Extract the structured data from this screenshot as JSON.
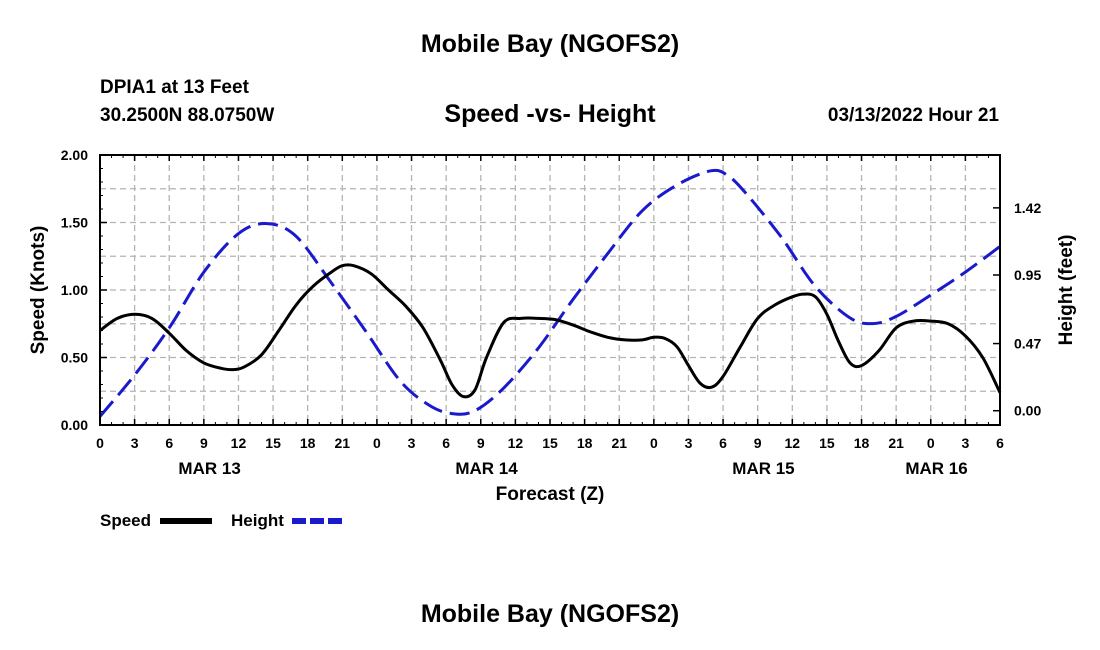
{
  "header": {
    "title": "Mobile Bay (NGOFS2)",
    "station": "DPIA1 at 13 Feet",
    "coords": "30.2500N  88.0750W",
    "subtitle": "Speed -vs- Height",
    "datetime": "03/13/2022 Hour 21",
    "title_repeat": "Mobile Bay (NGOFS2)"
  },
  "chart_data": {
    "type": "line",
    "title": "Speed -vs- Height",
    "xlabel": "Forecast (Z)",
    "ylabel": "Speed (Knots)",
    "y2label": "Height (feet)",
    "x_range_hours": [
      0,
      78
    ],
    "x_ticks": [
      {
        "h": 0,
        "label": "0"
      },
      {
        "h": 3,
        "label": "3"
      },
      {
        "h": 6,
        "label": "6"
      },
      {
        "h": 9,
        "label": "9"
      },
      {
        "h": 12,
        "label": "12"
      },
      {
        "h": 15,
        "label": "15"
      },
      {
        "h": 18,
        "label": "18"
      },
      {
        "h": 21,
        "label": "21"
      },
      {
        "h": 24,
        "label": "0"
      },
      {
        "h": 27,
        "label": "3"
      },
      {
        "h": 30,
        "label": "6"
      },
      {
        "h": 33,
        "label": "9"
      },
      {
        "h": 36,
        "label": "12"
      },
      {
        "h": 39,
        "label": "15"
      },
      {
        "h": 42,
        "label": "18"
      },
      {
        "h": 45,
        "label": "21"
      },
      {
        "h": 48,
        "label": "0"
      },
      {
        "h": 51,
        "label": "3"
      },
      {
        "h": 54,
        "label": "6"
      },
      {
        "h": 57,
        "label": "9"
      },
      {
        "h": 60,
        "label": "12"
      },
      {
        "h": 63,
        "label": "15"
      },
      {
        "h": 66,
        "label": "18"
      },
      {
        "h": 69,
        "label": "21"
      },
      {
        "h": 72,
        "label": "0"
      },
      {
        "h": 75,
        "label": "3"
      },
      {
        "h": 78,
        "label": "6"
      }
    ],
    "date_labels": [
      {
        "h": 9.5,
        "label": "MAR 13"
      },
      {
        "h": 33.5,
        "label": "MAR 14"
      },
      {
        "h": 57.5,
        "label": "MAR 15"
      },
      {
        "h": 72.5,
        "label": "MAR 16"
      }
    ],
    "ylim": [
      0,
      2.0
    ],
    "y_ticks": [
      {
        "v": 0.0,
        "label": "0.00"
      },
      {
        "v": 0.5,
        "label": "0.50"
      },
      {
        "v": 1.0,
        "label": "1.00"
      },
      {
        "v": 1.5,
        "label": "1.50"
      },
      {
        "v": 2.0,
        "label": "2.00"
      }
    ],
    "y2lim": [
      -0.1,
      1.79
    ],
    "y2_ticks": [
      {
        "v": 0.0,
        "label": "0.00"
      },
      {
        "v": 0.47,
        "label": "0.47"
      },
      {
        "v": 0.95,
        "label": "0.95"
      },
      {
        "v": 1.42,
        "label": "1.42"
      }
    ],
    "grid": true,
    "legend_position": "bottom-left",
    "series": [
      {
        "name": "Speed",
        "axis": "left",
        "color": "#000000",
        "dash": "solid",
        "x": [
          0,
          1.5,
          3,
          4.5,
          6,
          7.5,
          9,
          10.5,
          11.5,
          12.5,
          14,
          15.5,
          17,
          18.5,
          20,
          21,
          22,
          23.5,
          25,
          26.5,
          28,
          29.5,
          30.5,
          31.5,
          32.5,
          33.5,
          35,
          36.5,
          38,
          39.5,
          41,
          42.5,
          44,
          45.5,
          47,
          48,
          49,
          50,
          51,
          52,
          53,
          54,
          55.5,
          57,
          58.5,
          60,
          61,
          62,
          63,
          64,
          65,
          66,
          67.5,
          69,
          70.5,
          72,
          73.5,
          75,
          76.5,
          78
        ],
        "values": [
          0.7,
          0.79,
          0.82,
          0.79,
          0.68,
          0.55,
          0.46,
          0.42,
          0.41,
          0.43,
          0.52,
          0.7,
          0.89,
          1.03,
          1.13,
          1.18,
          1.18,
          1.12,
          1.0,
          0.88,
          0.72,
          0.48,
          0.3,
          0.21,
          0.26,
          0.5,
          0.76,
          0.79,
          0.79,
          0.78,
          0.74,
          0.69,
          0.65,
          0.63,
          0.63,
          0.65,
          0.64,
          0.58,
          0.44,
          0.31,
          0.28,
          0.36,
          0.58,
          0.79,
          0.89,
          0.95,
          0.97,
          0.95,
          0.82,
          0.62,
          0.46,
          0.44,
          0.55,
          0.72,
          0.77,
          0.77,
          0.75,
          0.66,
          0.5,
          0.24
        ]
      },
      {
        "name": "Height",
        "axis": "right",
        "color": "#1a1acd",
        "dash": "dashed",
        "x": [
          0,
          3,
          6,
          9,
          12,
          14.5,
          17,
          20,
          23,
          26,
          28.5,
          30.5,
          32.5,
          35,
          38,
          41,
          44,
          47,
          50,
          53,
          54.5,
          56,
          59,
          62,
          65,
          67,
          69,
          72,
          75,
          78
        ],
        "values": [
          -0.04,
          0.25,
          0.58,
          0.97,
          1.24,
          1.31,
          1.22,
          0.9,
          0.56,
          0.21,
          0.04,
          -0.02,
          0.0,
          0.16,
          0.44,
          0.78,
          1.1,
          1.4,
          1.58,
          1.68,
          1.64,
          1.52,
          1.22,
          0.87,
          0.65,
          0.61,
          0.66,
          0.81,
          0.97,
          1.15
        ]
      }
    ]
  }
}
